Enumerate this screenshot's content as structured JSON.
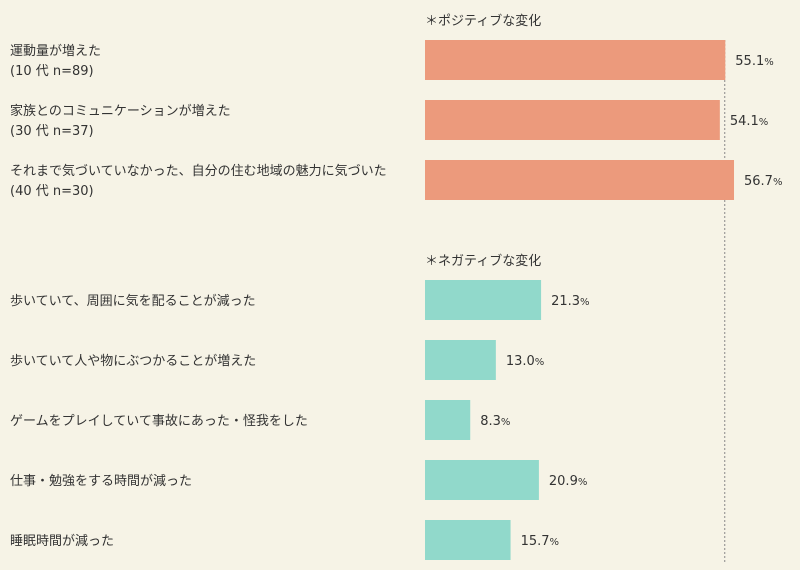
{
  "colors": {
    "background": "#f6f3e6",
    "positive": "#ec9a7c",
    "negative": "#91d9cb",
    "refline": "#888888",
    "text": "#333333"
  },
  "chart_data": {
    "type": "bar",
    "orientation": "horizontal",
    "unit": "%",
    "xlim": [
      0,
      100
    ],
    "reference_line": 55,
    "groups": [
      {
        "label": "＊ポジティブな変化",
        "color": "#ec9a7c",
        "items": [
          {
            "category": "運動量が増えた",
            "sublabel": "(10 代 n=89)",
            "value": 55.1,
            "display": "55.1"
          },
          {
            "category": "家族とのコミュニケーションが増えた",
            "sublabel": "(30 代 n=37)",
            "value": 54.1,
            "display": "54.1"
          },
          {
            "category": "それまで気づいていなかった、自分の住む地域の魅力に気づいた",
            "sublabel": "(40 代 n=30)",
            "value": 56.7,
            "display": "56.7"
          }
        ]
      },
      {
        "label": "＊ネガティブな変化",
        "color": "#91d9cb",
        "items": [
          {
            "category": "歩いていて、周囲に気を配ることが減った",
            "value": 21.3,
            "display": "21.3"
          },
          {
            "category": "歩いていて人や物にぶつかることが増えた",
            "value": 13.0,
            "display": "13.0"
          },
          {
            "category": "ゲームをプレイしていて事故にあった・怪我をした",
            "value": 8.3,
            "display": "8.3"
          },
          {
            "category": "仕事・勉強をする時間が減った",
            "value": 20.9,
            "display": "20.9"
          },
          {
            "category": "睡眠時間が減った",
            "value": 15.7,
            "display": "15.7"
          }
        ]
      }
    ]
  }
}
